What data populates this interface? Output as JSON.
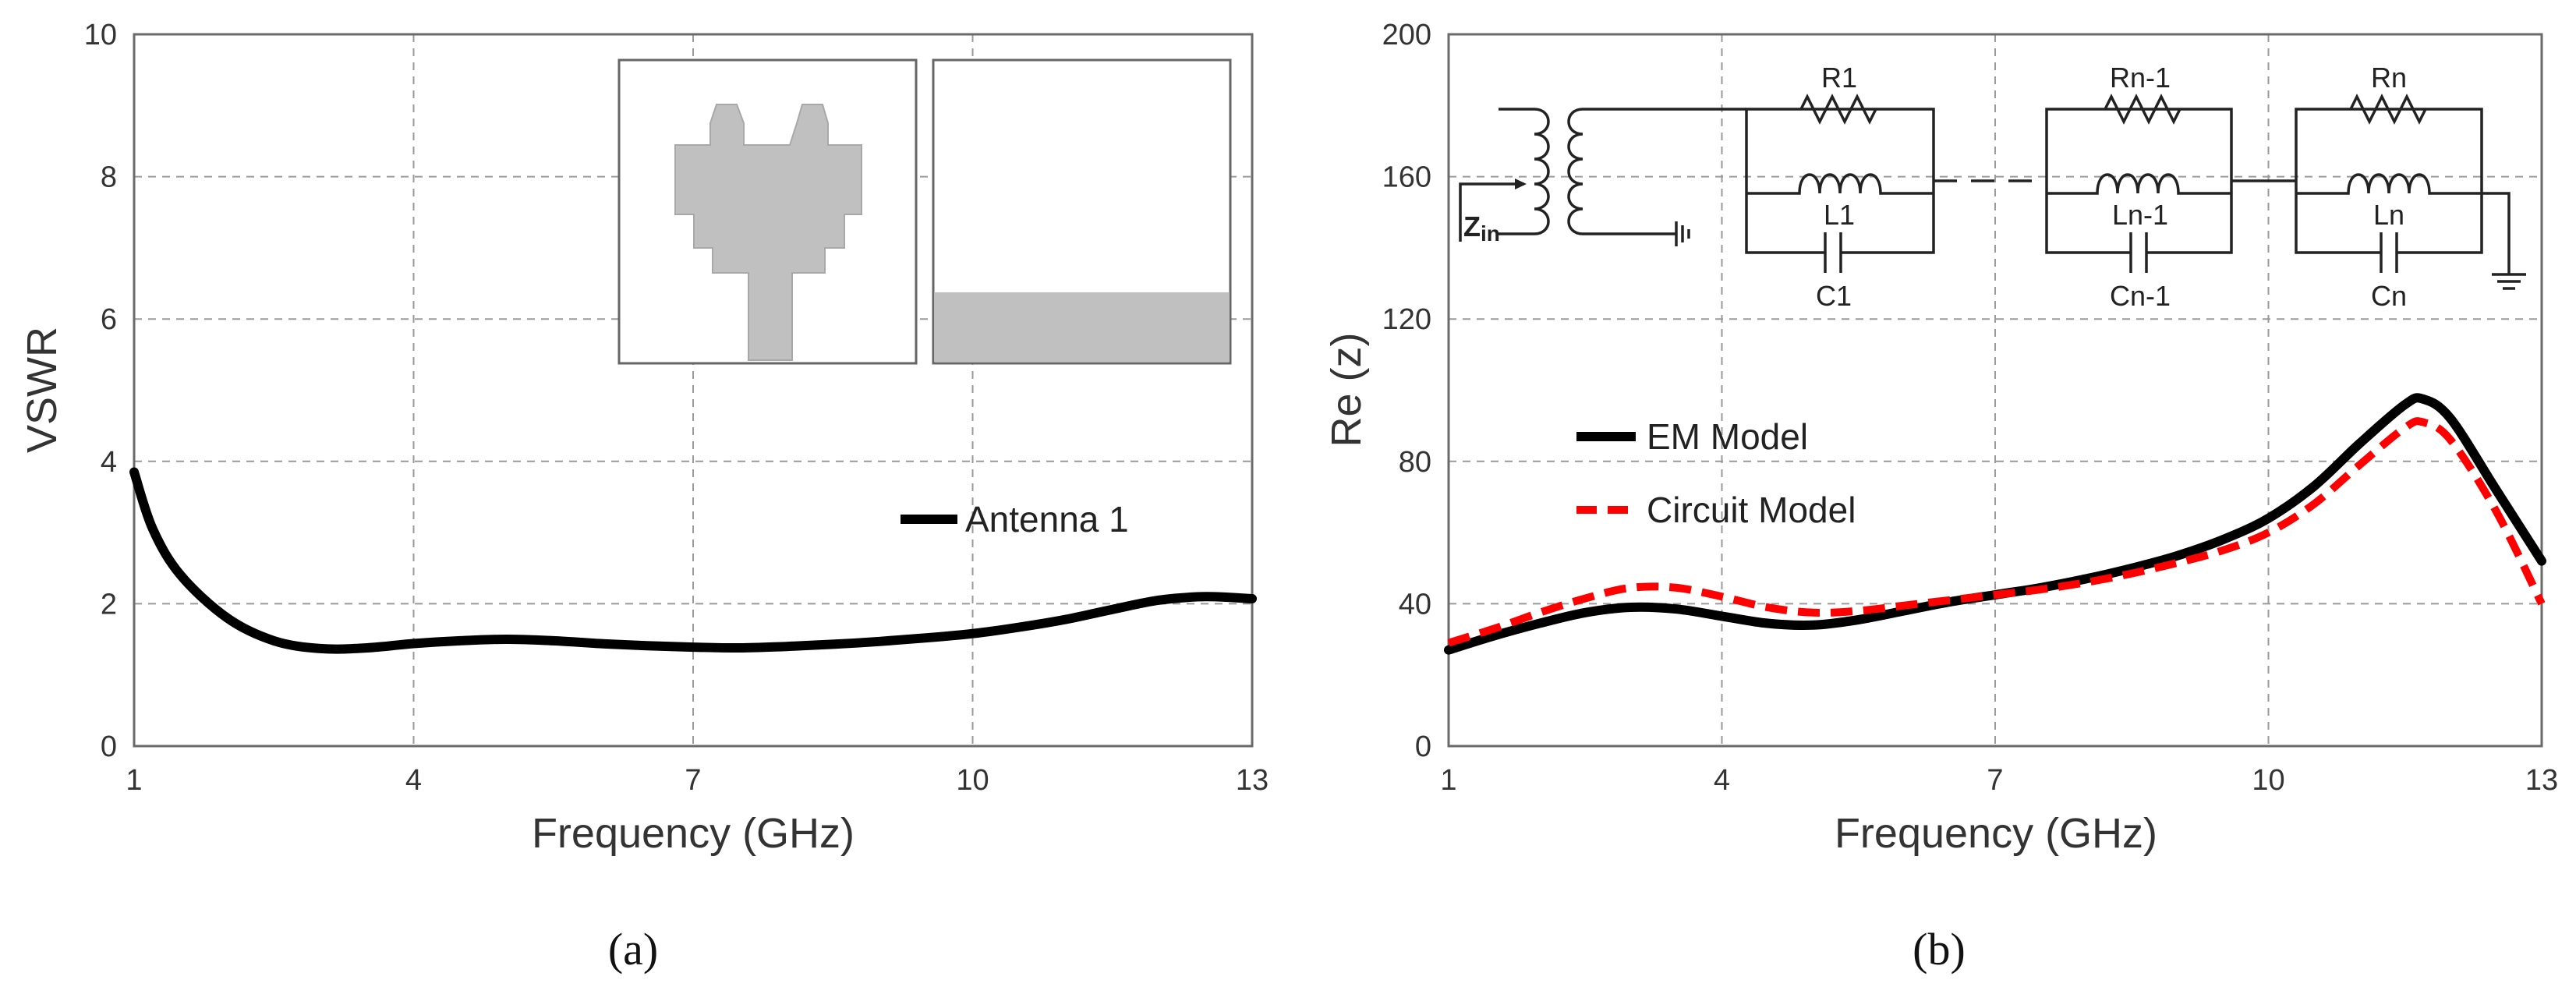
{
  "chart_data": [
    {
      "type": "line",
      "panel_caption": "(a)",
      "title": "",
      "xlabel": "Frequency (GHz)",
      "ylabel": "VSWR",
      "xlim": [
        1,
        13
      ],
      "ylim": [
        0,
        10
      ],
      "xticks": [
        "1",
        "4",
        "7",
        "10",
        "13"
      ],
      "yticks": [
        "0",
        "2",
        "4",
        "6",
        "8",
        "10"
      ],
      "grid": true,
      "legend_position": "middle-right",
      "series": [
        {
          "name": "Antenna 1",
          "color": "#000000",
          "style": "solid",
          "x": [
            1,
            1.2,
            1.5,
            2,
            2.5,
            3,
            3.5,
            4,
            4.5,
            5,
            5.5,
            6,
            6.5,
            7,
            7.5,
            8,
            8.5,
            9,
            9.5,
            10,
            10.5,
            11,
            11.5,
            12,
            12.5,
            13
          ],
          "y": [
            3.85,
            3.05,
            2.4,
            1.8,
            1.48,
            1.37,
            1.38,
            1.44,
            1.48,
            1.5,
            1.48,
            1.44,
            1.41,
            1.39,
            1.38,
            1.4,
            1.43,
            1.47,
            1.52,
            1.58,
            1.67,
            1.78,
            1.92,
            2.05,
            2.1,
            2.07
          ]
        }
      ],
      "inset": "antenna geometry (top and bottom views)"
    },
    {
      "type": "line",
      "panel_caption": "(b)",
      "title": "",
      "xlabel": "Frequency (GHz)",
      "ylabel": "Re (z)",
      "xlim": [
        1,
        13
      ],
      "ylim": [
        0,
        200
      ],
      "xticks": [
        "1",
        "4",
        "7",
        "10",
        "13"
      ],
      "yticks": [
        "0",
        "40",
        "80",
        "120",
        "160",
        "200"
      ],
      "grid": true,
      "legend_position": "middle-left",
      "series": [
        {
          "name": "EM Model",
          "color": "#000000",
          "style": "solid",
          "x": [
            1,
            1.5,
            2,
            2.5,
            3,
            3.5,
            4,
            4.5,
            5,
            5.5,
            6,
            6.5,
            7,
            7.5,
            8,
            8.5,
            9,
            9.5,
            10,
            10.5,
            11,
            11.5,
            11.7,
            12,
            12.5,
            13
          ],
          "y": [
            27,
            31,
            34.5,
            37.5,
            39,
            38.5,
            36.5,
            34.5,
            34,
            35.5,
            38,
            40.5,
            42.5,
            44.5,
            47,
            50,
            53.5,
            58,
            64,
            73,
            85,
            96,
            97.5,
            92,
            72,
            52
          ]
        },
        {
          "name": "Circuit Model",
          "color": "#ff0000",
          "style": "dashed",
          "x": [
            1,
            1.5,
            2,
            2.5,
            3,
            3.5,
            4,
            4.5,
            5,
            5.5,
            6,
            6.5,
            7,
            7.5,
            8,
            8.5,
            9,
            9.5,
            10,
            10.5,
            11,
            11.5,
            11.7,
            12,
            12.5,
            13
          ],
          "y": [
            29,
            33,
            37.5,
            41.5,
            44.5,
            44.5,
            42,
            39,
            37.5,
            38,
            39.5,
            41,
            42.5,
            44,
            46,
            48.5,
            51.5,
            55,
            60,
            68,
            79,
            89.5,
            91,
            86,
            66,
            40
          ]
        }
      ],
      "circuit_labels": {
        "zin": "Z",
        "zin_sub": "in",
        "r1": "R1",
        "l1": "L1",
        "c1": "C1",
        "rn1": "Rn-1",
        "ln1": "Ln-1",
        "cn1": "Cn-1",
        "rn": "Rn",
        "ln": "Ln",
        "cn": "Cn"
      }
    }
  ]
}
